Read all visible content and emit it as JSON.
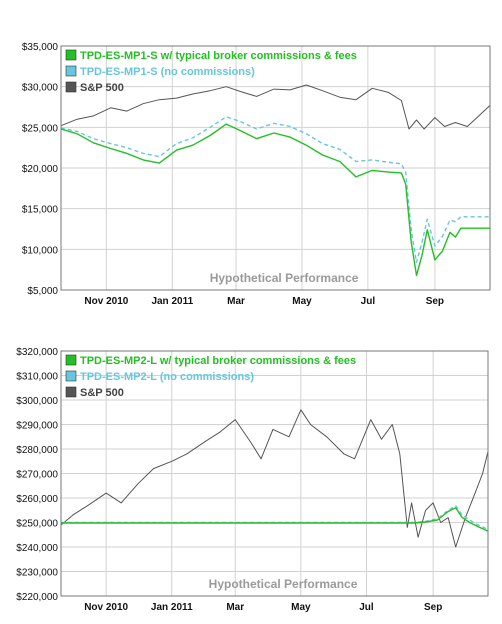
{
  "colors": {
    "broker": "#22c022",
    "nocomm": "#66c6dc",
    "sp500": "#555555",
    "grid": "#d2d2d2",
    "frame": "#777777"
  },
  "chart_data": [
    {
      "type": "line",
      "watermark": "Hypothetical Performance",
      "ylim": [
        5000,
        35000
      ],
      "y_ticks": [
        5000,
        10000,
        15000,
        20000,
        25000,
        30000,
        35000
      ],
      "y_tick_labels": [
        "$5,000",
        "$10,000",
        "$15,000",
        "$20,000",
        "$25,000",
        "$30,000",
        "$35,000"
      ],
      "x_ticks": [
        "2010-11-01",
        "2011-01-01",
        "2011-03-01",
        "2011-05-01",
        "2011-07-01",
        "2011-09-01"
      ],
      "x_tick_labels": [
        "Nov 2010",
        "Jan 2011",
        "Mar",
        "May",
        "Jul",
        "Sep"
      ],
      "xlim": [
        "2010-09-20",
        "2011-10-22"
      ],
      "grid": true,
      "legend": "top-left",
      "series": [
        {
          "name": "TPD-ES-MP1-S w/ typical broker commissions & fees",
          "color_key": "broker",
          "points": [
            [
              "2010-09-20",
              24800
            ],
            [
              "2010-10-05",
              24200
            ],
            [
              "2010-10-20",
              23100
            ],
            [
              "2010-11-05",
              22400
            ],
            [
              "2010-11-20",
              21800
            ],
            [
              "2010-12-05",
              21000
            ],
            [
              "2010-12-20",
              20600
            ],
            [
              "2011-01-05",
              22200
            ],
            [
              "2011-01-20",
              22800
            ],
            [
              "2011-02-05",
              24000
            ],
            [
              "2011-02-20",
              25400
            ],
            [
              "2011-03-05",
              24600
            ],
            [
              "2011-03-20",
              23600
            ],
            [
              "2011-04-05",
              24300
            ],
            [
              "2011-04-20",
              23800
            ],
            [
              "2011-05-05",
              22800
            ],
            [
              "2011-05-20",
              21600
            ],
            [
              "2011-06-05",
              20800
            ],
            [
              "2011-06-20",
              18900
            ],
            [
              "2011-07-05",
              19700
            ],
            [
              "2011-07-20",
              19500
            ],
            [
              "2011-08-01",
              19400
            ],
            [
              "2011-08-05",
              18000
            ],
            [
              "2011-08-10",
              11000
            ],
            [
              "2011-08-15",
              6800
            ],
            [
              "2011-08-20",
              9200
            ],
            [
              "2011-08-25",
              12400
            ],
            [
              "2011-09-01",
              8700
            ],
            [
              "2011-09-08",
              9800
            ],
            [
              "2011-09-15",
              12100
            ],
            [
              "2011-09-20",
              11500
            ],
            [
              "2011-09-25",
              12600
            ],
            [
              "2011-10-05",
              12600
            ],
            [
              "2011-10-22",
              12600
            ]
          ]
        },
        {
          "name": "TPD-ES-MP1-S (no commissions)",
          "color_key": "nocomm",
          "dashed": true,
          "points": [
            [
              "2010-09-20",
              24900
            ],
            [
              "2010-10-05",
              24500
            ],
            [
              "2010-10-20",
              23600
            ],
            [
              "2010-11-05",
              23000
            ],
            [
              "2010-11-20",
              22500
            ],
            [
              "2010-12-05",
              21800
            ],
            [
              "2010-12-20",
              21400
            ],
            [
              "2011-01-05",
              23000
            ],
            [
              "2011-01-20",
              23700
            ],
            [
              "2011-02-05",
              25000
            ],
            [
              "2011-02-20",
              26300
            ],
            [
              "2011-03-05",
              25700
            ],
            [
              "2011-03-20",
              24800
            ],
            [
              "2011-04-05",
              25500
            ],
            [
              "2011-04-20",
              25100
            ],
            [
              "2011-05-05",
              24200
            ],
            [
              "2011-05-20",
              23000
            ],
            [
              "2011-06-05",
              22300
            ],
            [
              "2011-06-20",
              20800
            ],
            [
              "2011-07-05",
              21000
            ],
            [
              "2011-07-20",
              20700
            ],
            [
              "2011-08-01",
              20500
            ],
            [
              "2011-08-05",
              19500
            ],
            [
              "2011-08-10",
              12500
            ],
            [
              "2011-08-15",
              8400
            ],
            [
              "2011-08-20",
              10800
            ],
            [
              "2011-08-25",
              13700
            ],
            [
              "2011-09-01",
              10400
            ],
            [
              "2011-09-08",
              11600
            ],
            [
              "2011-09-15",
              13600
            ],
            [
              "2011-09-20",
              13400
            ],
            [
              "2011-09-25",
              14000
            ],
            [
              "2011-10-05",
              14000
            ],
            [
              "2011-10-22",
              14000
            ]
          ]
        },
        {
          "name": "S&P 500",
          "color_key": "sp500",
          "points": [
            [
              "2010-09-20",
              25200
            ],
            [
              "2010-10-05",
              26000
            ],
            [
              "2010-10-20",
              26400
            ],
            [
              "2010-11-05",
              27400
            ],
            [
              "2010-11-20",
              27000
            ],
            [
              "2010-12-05",
              27900
            ],
            [
              "2010-12-20",
              28400
            ],
            [
              "2011-01-05",
              28600
            ],
            [
              "2011-01-20",
              29100
            ],
            [
              "2011-02-05",
              29500
            ],
            [
              "2011-02-20",
              30000
            ],
            [
              "2011-03-05",
              29400
            ],
            [
              "2011-03-20",
              28800
            ],
            [
              "2011-04-05",
              29700
            ],
            [
              "2011-04-20",
              29600
            ],
            [
              "2011-05-05",
              30200
            ],
            [
              "2011-05-20",
              29500
            ],
            [
              "2011-06-05",
              28700
            ],
            [
              "2011-06-20",
              28400
            ],
            [
              "2011-07-05",
              29800
            ],
            [
              "2011-07-20",
              29300
            ],
            [
              "2011-08-01",
              28300
            ],
            [
              "2011-08-08",
              24800
            ],
            [
              "2011-08-15",
              25900
            ],
            [
              "2011-08-22",
              24800
            ],
            [
              "2011-09-01",
              26200
            ],
            [
              "2011-09-10",
              25100
            ],
            [
              "2011-09-20",
              25600
            ],
            [
              "2011-10-01",
              25100
            ],
            [
              "2011-10-10",
              26200
            ],
            [
              "2011-10-22",
              27700
            ]
          ]
        }
      ]
    },
    {
      "type": "line",
      "watermark": "Hypothetical Performance",
      "ylim": [
        220000,
        320000
      ],
      "y_ticks": [
        220000,
        230000,
        240000,
        250000,
        260000,
        270000,
        280000,
        290000,
        300000,
        310000,
        320000
      ],
      "y_tick_labels": [
        "$220,000",
        "$230,000",
        "$240,000",
        "$250,000",
        "$260,000",
        "$270,000",
        "$280,000",
        "$290,000",
        "$300,000",
        "$310,000",
        "$320,000"
      ],
      "x_ticks": [
        "2010-11-01",
        "2011-01-01",
        "2011-03-01",
        "2011-05-01",
        "2011-07-01",
        "2011-09-01"
      ],
      "x_tick_labels": [
        "Nov 2010",
        "Jan 2011",
        "Mar",
        "May",
        "Jul",
        "Sep"
      ],
      "xlim": [
        "2010-09-20",
        "2011-10-22"
      ],
      "grid": true,
      "legend": "top-left",
      "series": [
        {
          "name": "TPD-ES-MP2-L w/ typical broker commissions & fees",
          "color_key": "broker",
          "points": [
            [
              "2010-09-20",
              249800
            ],
            [
              "2011-08-15",
              249800
            ],
            [
              "2011-08-25",
              250200
            ],
            [
              "2011-09-05",
              251000
            ],
            [
              "2011-09-15",
              254500
            ],
            [
              "2011-09-22",
              256000
            ],
            [
              "2011-09-28",
              252000
            ],
            [
              "2011-10-05",
              250000
            ],
            [
              "2011-10-12",
              248500
            ],
            [
              "2011-10-22",
              246500
            ]
          ]
        },
        {
          "name": "TPD-ES-MP2-L (no commissions)",
          "color_key": "nocomm",
          "dashed": true,
          "points": [
            [
              "2010-09-20",
              250000
            ],
            [
              "2011-08-15",
              250000
            ],
            [
              "2011-08-25",
              250500
            ],
            [
              "2011-09-05",
              251500
            ],
            [
              "2011-09-15",
              255000
            ],
            [
              "2011-09-22",
              256800
            ],
            [
              "2011-09-28",
              253000
            ],
            [
              "2011-10-05",
              251000
            ],
            [
              "2011-10-12",
              249200
            ],
            [
              "2011-10-22",
              247200
            ]
          ]
        },
        {
          "name": "S&P 500",
          "color_key": "sp500",
          "points": [
            [
              "2010-09-20",
              249000
            ],
            [
              "2010-10-01",
              253000
            ],
            [
              "2010-10-15",
              257000
            ],
            [
              "2010-11-01",
              262000
            ],
            [
              "2010-11-15",
              258000
            ],
            [
              "2010-12-01",
              266000
            ],
            [
              "2010-12-15",
              272000
            ],
            [
              "2011-01-01",
              275000
            ],
            [
              "2011-01-15",
              278000
            ],
            [
              "2011-02-01",
              283000
            ],
            [
              "2011-02-15",
              287000
            ],
            [
              "2011-03-01",
              292000
            ],
            [
              "2011-03-15",
              283000
            ],
            [
              "2011-03-25",
              276000
            ],
            [
              "2011-04-05",
              288000
            ],
            [
              "2011-04-20",
              285000
            ],
            [
              "2011-05-01",
              296000
            ],
            [
              "2011-05-10",
              290000
            ],
            [
              "2011-05-25",
              285000
            ],
            [
              "2011-06-10",
              278000
            ],
            [
              "2011-06-20",
              276000
            ],
            [
              "2011-07-05",
              292000
            ],
            [
              "2011-07-15",
              284000
            ],
            [
              "2011-07-25",
              290000
            ],
            [
              "2011-08-01",
              278000
            ],
            [
              "2011-08-08",
              248000
            ],
            [
              "2011-08-12",
              258000
            ],
            [
              "2011-08-18",
              244000
            ],
            [
              "2011-08-25",
              255000
            ],
            [
              "2011-09-01",
              258000
            ],
            [
              "2011-09-08",
              250000
            ],
            [
              "2011-09-15",
              252000
            ],
            [
              "2011-09-22",
              240000
            ],
            [
              "2011-10-01",
              252000
            ],
            [
              "2011-10-10",
              262000
            ],
            [
              "2011-10-17",
              270000
            ],
            [
              "2011-10-22",
              279000
            ]
          ]
        }
      ]
    }
  ]
}
